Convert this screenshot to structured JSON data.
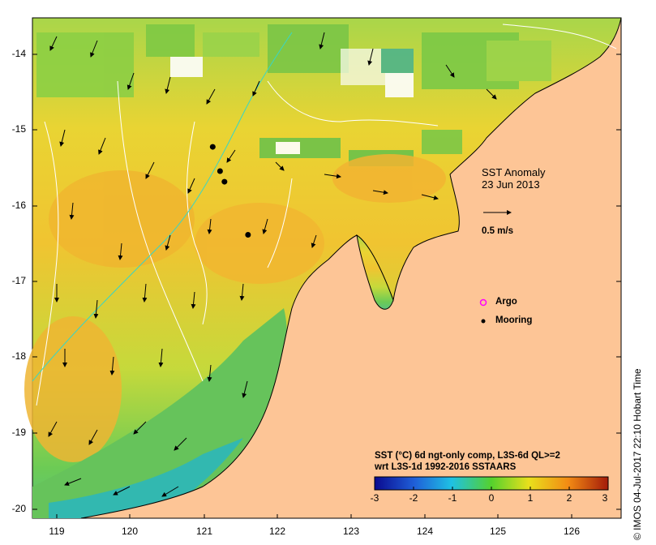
{
  "map": {
    "title_line1": "SST Anomaly",
    "title_line2": "23 Jun 2013",
    "vector_scale_label": "0.5 m/s",
    "legend": {
      "argo_label": "Argo",
      "mooring_label": "Mooring"
    },
    "colorbar_title_line1": "SST (°C) 6d ngt-only comp, L3S-6d QL>=2",
    "colorbar_title_line2": "wrt L3S-1d 1992-2016 SSTAARS",
    "colorbar_ticks": [
      "-3",
      "-2",
      "-1",
      "0",
      "1",
      "2",
      "3"
    ],
    "x_ticks": [
      "119",
      "120",
      "121",
      "122",
      "123",
      "124",
      "125",
      "126"
    ],
    "y_ticks": [
      "-14",
      "-15",
      "-16",
      "-17",
      "-18",
      "-19",
      "-20"
    ],
    "credit": "© IMOS 04-Jul-2017 22:10 Hobart Time",
    "colors": {
      "land": "#fdc596",
      "ocean_warm": "#f2d22e",
      "ocean_cool": "#8fd14d",
      "cyan": "#38d6c6"
    },
    "moorings": [
      {
        "lon": 121.12,
        "lat": -15.22
      },
      {
        "lon": 121.22,
        "lat": -15.54
      },
      {
        "lon": 121.28,
        "lat": -15.68
      },
      {
        "lon": 121.6,
        "lat": -16.38
      }
    ]
  }
}
